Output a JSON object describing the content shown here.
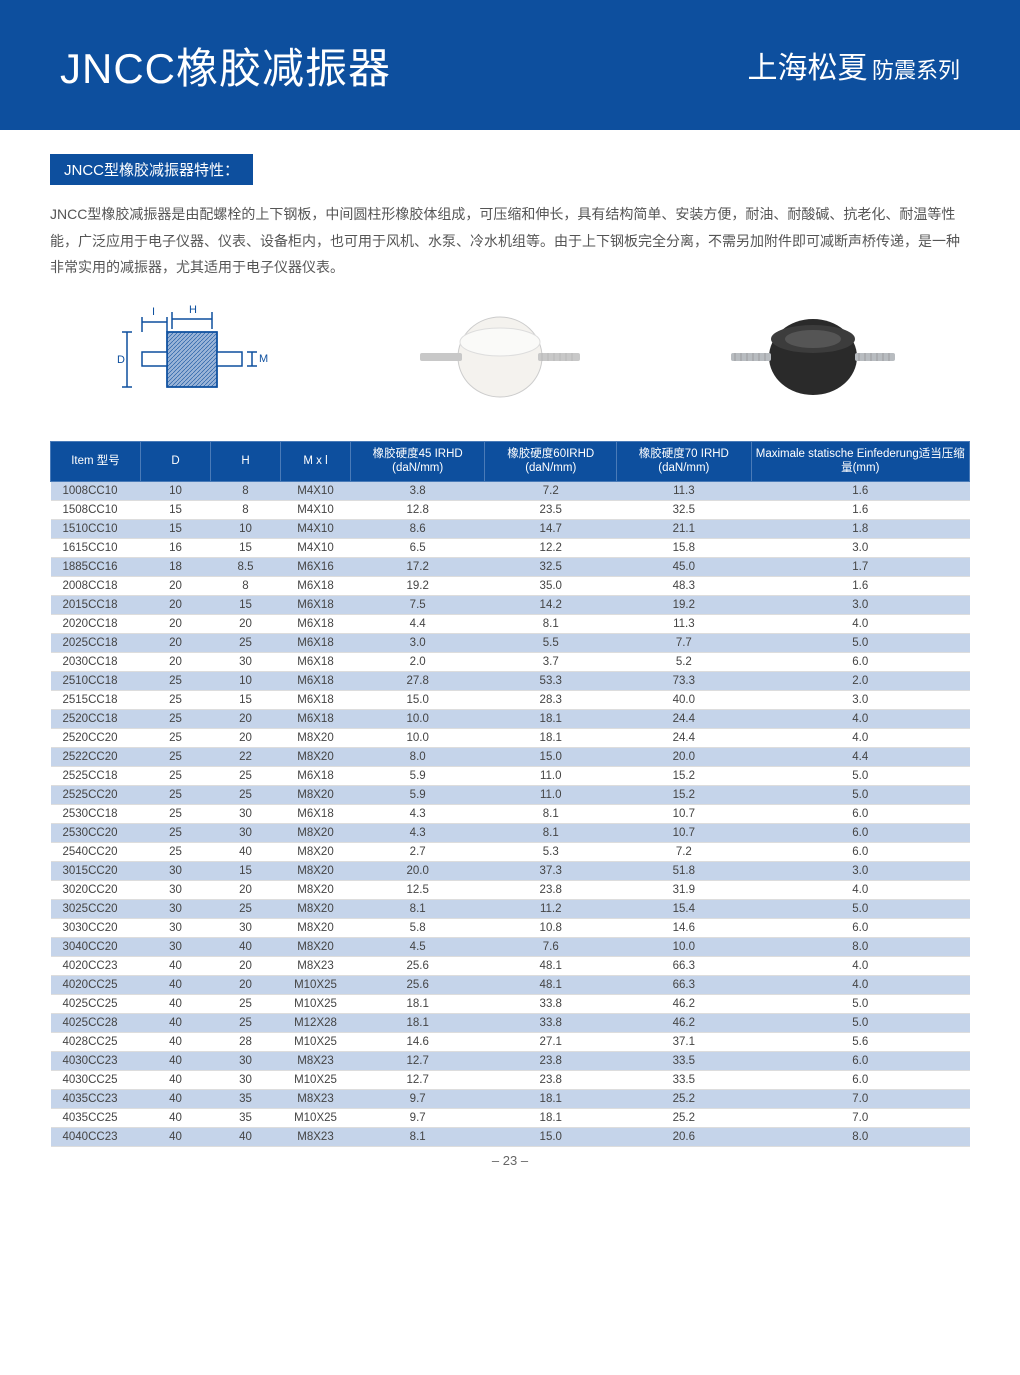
{
  "header": {
    "title": "JNCC橡胶减振器",
    "brand": "上海松夏",
    "series": "防震系列"
  },
  "section_title": "JNCC型橡胶减振器特性：",
  "description": "JNCC型橡胶减振器是由配螺栓的上下钢板，中间圆柱形橡胶体组成，可压缩和伸长，具有结构简单、安装方便，耐油、耐酸碱、抗老化、耐温等性能，广泛应用于电子仪器、仪表、设备柜内，也可用于风机、水泵、冷水机组等。由于上下钢板完全分离，不需另加附件即可减断声桥传递，是一种非常实用的减振器，尤其适用于电子仪器仪表。",
  "table": {
    "columns": [
      "Item 型号",
      "D",
      "H",
      "M x l",
      "橡胶硬度45 IRHD (daN/mm)",
      "橡胶硬度60IRHD (daN/mm)",
      "橡胶硬度70 IRHD (daN/mm)",
      "Maximale statische Einfederung适当压缩量(mm)"
    ],
    "rows": [
      [
        "1008CC10",
        "10",
        "8",
        "M4X10",
        "3.8",
        "7.2",
        "11.3",
        "1.6"
      ],
      [
        "1508CC10",
        "15",
        "8",
        "M4X10",
        "12.8",
        "23.5",
        "32.5",
        "1.6"
      ],
      [
        "1510CC10",
        "15",
        "10",
        "M4X10",
        "8.6",
        "14.7",
        "21.1",
        "1.8"
      ],
      [
        "1615CC10",
        "16",
        "15",
        "M4X10",
        "6.5",
        "12.2",
        "15.8",
        "3.0"
      ],
      [
        "1885CC16",
        "18",
        "8.5",
        "M6X16",
        "17.2",
        "32.5",
        "45.0",
        "1.7"
      ],
      [
        "2008CC18",
        "20",
        "8",
        "M6X18",
        "19.2",
        "35.0",
        "48.3",
        "1.6"
      ],
      [
        "2015CC18",
        "20",
        "15",
        "M6X18",
        "7.5",
        "14.2",
        "19.2",
        "3.0"
      ],
      [
        "2020CC18",
        "20",
        "20",
        "M6X18",
        "4.4",
        "8.1",
        "11.3",
        "4.0"
      ],
      [
        "2025CC18",
        "20",
        "25",
        "M6X18",
        "3.0",
        "5.5",
        "7.7",
        "5.0"
      ],
      [
        "2030CC18",
        "20",
        "30",
        "M6X18",
        "2.0",
        "3.7",
        "5.2",
        "6.0"
      ],
      [
        "2510CC18",
        "25",
        "10",
        "M6X18",
        "27.8",
        "53.3",
        "73.3",
        "2.0"
      ],
      [
        "2515CC18",
        "25",
        "15",
        "M6X18",
        "15.0",
        "28.3",
        "40.0",
        "3.0"
      ],
      [
        "2520CC18",
        "25",
        "20",
        "M6X18",
        "10.0",
        "18.1",
        "24.4",
        "4.0"
      ],
      [
        "2520CC20",
        "25",
        "20",
        "M8X20",
        "10.0",
        "18.1",
        "24.4",
        "4.0"
      ],
      [
        "2522CC20",
        "25",
        "22",
        "M8X20",
        "8.0",
        "15.0",
        "20.0",
        "4.4"
      ],
      [
        "2525CC18",
        "25",
        "25",
        "M6X18",
        "5.9",
        "11.0",
        "15.2",
        "5.0"
      ],
      [
        "2525CC20",
        "25",
        "25",
        "M8X20",
        "5.9",
        "11.0",
        "15.2",
        "5.0"
      ],
      [
        "2530CC18",
        "25",
        "30",
        "M6X18",
        "4.3",
        "8.1",
        "10.7",
        "6.0"
      ],
      [
        "2530CC20",
        "25",
        "30",
        "M8X20",
        "4.3",
        "8.1",
        "10.7",
        "6.0"
      ],
      [
        "2540CC20",
        "25",
        "40",
        "M8X20",
        "2.7",
        "5.3",
        "7.2",
        "6.0"
      ],
      [
        "3015CC20",
        "30",
        "15",
        "M8X20",
        "20.0",
        "37.3",
        "51.8",
        "3.0"
      ],
      [
        "3020CC20",
        "30",
        "20",
        "M8X20",
        "12.5",
        "23.8",
        "31.9",
        "4.0"
      ],
      [
        "3025CC20",
        "30",
        "25",
        "M8X20",
        "8.1",
        "11.2",
        "15.4",
        "5.0"
      ],
      [
        "3030CC20",
        "30",
        "30",
        "M8X20",
        "5.8",
        "10.8",
        "14.6",
        "6.0"
      ],
      [
        "3040CC20",
        "30",
        "40",
        "M8X20",
        "4.5",
        "7.6",
        "10.0",
        "8.0"
      ],
      [
        "4020CC23",
        "40",
        "20",
        "M8X23",
        "25.6",
        "48.1",
        "66.3",
        "4.0"
      ],
      [
        "4020CC25",
        "40",
        "20",
        "M10X25",
        "25.6",
        "48.1",
        "66.3",
        "4.0"
      ],
      [
        "4025CC25",
        "40",
        "25",
        "M10X25",
        "18.1",
        "33.8",
        "46.2",
        "5.0"
      ],
      [
        "4025CC28",
        "40",
        "25",
        "M12X28",
        "18.1",
        "33.8",
        "46.2",
        "5.0"
      ],
      [
        "4028CC25",
        "40",
        "28",
        "M10X25",
        "14.6",
        "27.1",
        "37.1",
        "5.6"
      ],
      [
        "4030CC23",
        "40",
        "30",
        "M8X23",
        "12.7",
        "23.8",
        "33.5",
        "6.0"
      ],
      [
        "4030CC25",
        "40",
        "30",
        "M10X25",
        "12.7",
        "23.8",
        "33.5",
        "6.0"
      ],
      [
        "4035CC23",
        "40",
        "35",
        "M8X23",
        "9.7",
        "18.1",
        "25.2",
        "7.0"
      ],
      [
        "4035CC25",
        "40",
        "35",
        "M10X25",
        "9.7",
        "18.1",
        "25.2",
        "7.0"
      ],
      [
        "4040CC23",
        "40",
        "40",
        "M8X23",
        "8.1",
        "15.0",
        "20.6",
        "8.0"
      ]
    ],
    "header_bg": "#0d4f9e",
    "odd_row_bg": "#c5d4ea",
    "even_row_bg": "#ffffff"
  },
  "page_number": "– 23 –"
}
